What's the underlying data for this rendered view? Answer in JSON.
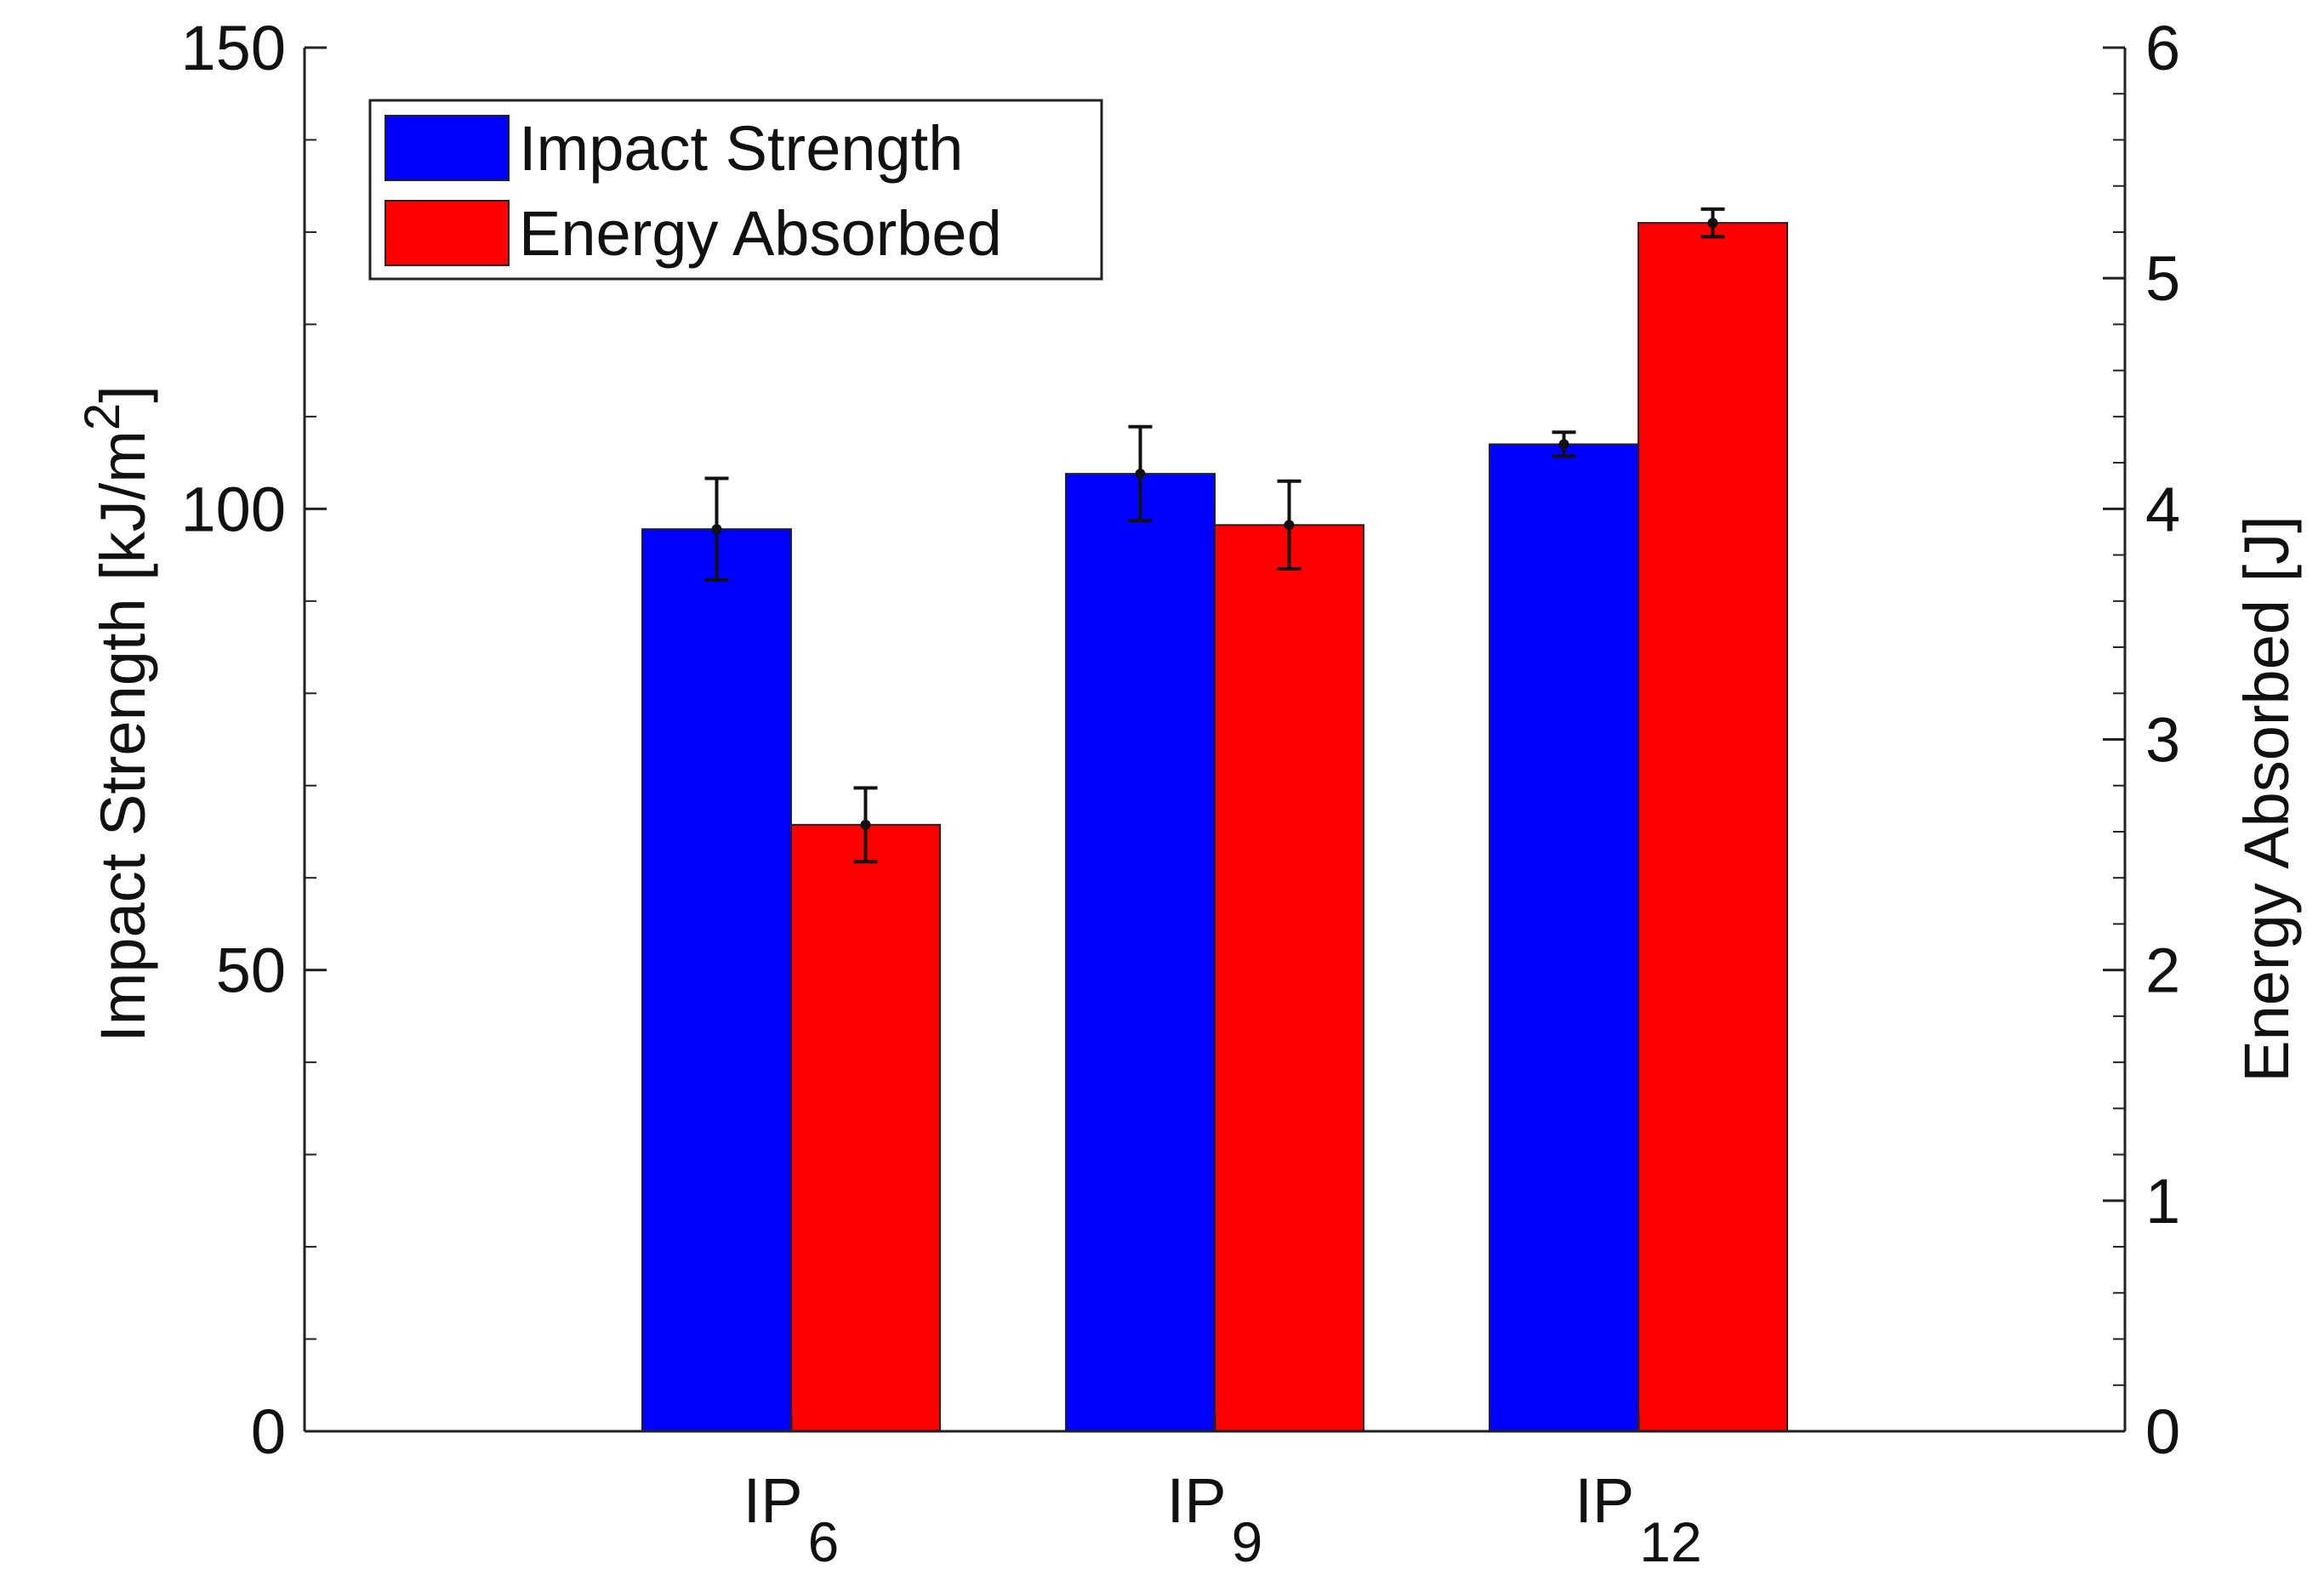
{
  "chart_data": {
    "type": "bar",
    "categories": [
      {
        "base": "IP",
        "sub": "6"
      },
      {
        "base": "IP",
        "sub": "9"
      },
      {
        "base": "IP",
        "sub": "12"
      }
    ],
    "series": [
      {
        "name": "Impact Strength",
        "axis": "left",
        "color": "#0000FF",
        "values": [
          97.8,
          103.8,
          107.0
        ],
        "errors": [
          5.5,
          5.1,
          1.3
        ]
      },
      {
        "name": "Energy Absorbed",
        "axis": "right",
        "color": "#FF0000",
        "values": [
          2.63,
          3.93,
          5.24
        ],
        "errors": [
          0.16,
          0.19,
          0.06
        ]
      }
    ],
    "y_left": {
      "label_main": "Impact Strength",
      "label_unit_text": "kJ/m",
      "label_unit_sup": "2",
      "ylim": [
        0,
        150
      ],
      "ticks": [
        0,
        50,
        100,
        150
      ],
      "tick_labels": [
        "0",
        "50",
        "100",
        "150"
      ],
      "minor_step": 10
    },
    "y_right": {
      "label_main": "Energy Absorbed",
      "label_unit": "J",
      "ylim": [
        0,
        6
      ],
      "ticks": [
        0,
        1,
        2,
        3,
        4,
        5,
        6
      ],
      "tick_labels": [
        "0",
        "1",
        "2",
        "3",
        "4",
        "5",
        "6"
      ],
      "minor_step": 0.2
    },
    "legend": {
      "placement": "top-left",
      "entries": [
        "Impact Strength",
        "Energy Absorbed"
      ]
    },
    "grid": false
  }
}
